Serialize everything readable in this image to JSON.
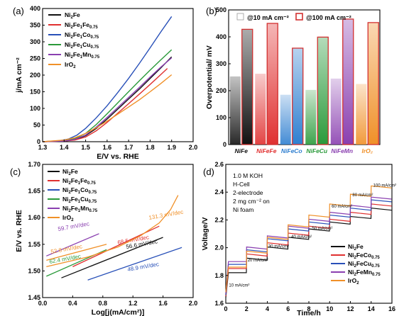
{
  "chart_data": [
    {
      "panel": "(a)",
      "type": "line",
      "xlabel": "E/V vs. RHE",
      "ylabel": "j/mA cm⁻²",
      "xlim": [
        1.3,
        2.0
      ],
      "ylim": [
        0,
        400
      ],
      "xticks": [
        "1.3",
        "1.4",
        "1.5",
        "1.6",
        "1.7",
        "1.8",
        "1.9",
        "2.0"
      ],
      "yticks": [
        "0",
        "50",
        "100",
        "150",
        "200",
        "250",
        "300",
        "350",
        "400"
      ],
      "legend_position": "top-left",
      "series": [
        {
          "name": "Ni₂Fe",
          "color": "#111111",
          "x": [
            1.3,
            1.4,
            1.45,
            1.5,
            1.55,
            1.6,
            1.65,
            1.7,
            1.75,
            1.8,
            1.85,
            1.9
          ],
          "y": [
            0,
            2,
            6,
            18,
            40,
            68,
            98,
            128,
            158,
            190,
            222,
            255
          ]
        },
        {
          "name": "Ni₂Fe₁Fe₀.₇₅",
          "color": "#e03030",
          "x": [
            1.3,
            1.4,
            1.45,
            1.5,
            1.55,
            1.6,
            1.65,
            1.7,
            1.75,
            1.8,
            1.85,
            1.88
          ],
          "y": [
            0,
            2,
            5,
            14,
            33,
            58,
            86,
            114,
            143,
            172,
            202,
            220
          ]
        },
        {
          "name": "Ni₂Fe₁Co₀.₇₅",
          "color": "#2850b8",
          "x": [
            1.3,
            1.38,
            1.42,
            1.46,
            1.5,
            1.55,
            1.6,
            1.65,
            1.7,
            1.75,
            1.8,
            1.85,
            1.9
          ],
          "y": [
            0,
            3,
            8,
            20,
            40,
            72,
            108,
            148,
            190,
            235,
            282,
            330,
            376
          ]
        },
        {
          "name": "Ni₂Fe₁Cu₀.₇₅",
          "color": "#2a9a3a",
          "x": [
            1.3,
            1.4,
            1.45,
            1.5,
            1.55,
            1.6,
            1.65,
            1.7,
            1.75,
            1.8,
            1.85,
            1.9
          ],
          "y": [
            0,
            3,
            9,
            25,
            52,
            84,
            117,
            150,
            183,
            215,
            246,
            276
          ]
        },
        {
          "name": "Ni₂Fe₁Mn₀.₇₅",
          "color": "#8a3fb0",
          "x": [
            1.3,
            1.4,
            1.45,
            1.5,
            1.55,
            1.6,
            1.65,
            1.7,
            1.75,
            1.8,
            1.85,
            1.9
          ],
          "y": [
            0,
            2,
            7,
            20,
            44,
            73,
            103,
            133,
            163,
            194,
            224,
            252
          ]
        },
        {
          "name": "IrO₂",
          "color": "#f09028",
          "x": [
            1.3,
            1.4,
            1.45,
            1.5,
            1.55,
            1.6,
            1.65,
            1.7,
            1.75,
            1.8,
            1.85,
            1.9
          ],
          "y": [
            0,
            5,
            12,
            25,
            42,
            62,
            83,
            104,
            126,
            150,
            175,
            201
          ]
        }
      ]
    },
    {
      "panel": "(b)",
      "type": "bar",
      "ylabel": "Overpotential/ mV",
      "ylim": [
        0,
        500
      ],
      "yticks": [
        "0",
        "100",
        "200",
        "300",
        "400",
        "500"
      ],
      "legend_position": "top",
      "categories": [
        "NiFe",
        "NiFeFe",
        "NiFeCo",
        "NiFeCu",
        "NiFeMn",
        "IrO₂"
      ],
      "category_colors": [
        "#111111",
        "#e03030",
        "#2f7fd0",
        "#2a9a3a",
        "#8a3fb0",
        "#f09028"
      ],
      "series": [
        {
          "name": "@10 mA cm⁻²",
          "values": [
            253,
            263,
            185,
            203,
            245,
            225
          ]
        },
        {
          "name": "@100 mA cm⁻²",
          "values": [
            428,
            450,
            358,
            399,
            466,
            453
          ]
        }
      ]
    },
    {
      "panel": "(c)",
      "type": "line",
      "xlabel": "Log[j(mA/cm²)]",
      "ylabel": "E/V vs. RHE",
      "xlim": [
        0.0,
        2.0
      ],
      "ylim": [
        1.45,
        1.7
      ],
      "xticks": [
        "0.0",
        "0.4",
        "0.8",
        "1.2",
        "1.6",
        "2.0"
      ],
      "yticks": [
        "1.45",
        "1.50",
        "1.55",
        "1.60",
        "1.65",
        "1.70"
      ],
      "legend_position": "top-left",
      "series": [
        {
          "name": "Ni₂Fe",
          "color": "#111111",
          "x": [
            0.25,
            1.6
          ],
          "y": [
            1.487,
            1.563
          ],
          "annotation": "56.6 mV/dec"
        },
        {
          "name": "Ni₂Fe₁Fe₀.₇₅",
          "color": "#e03030",
          "x": [
            0.4,
            1.55
          ],
          "y": [
            1.508,
            1.584
          ],
          "annotation": "68.5 mV/dec"
        },
        {
          "name": "Ni₂Fe₁Co₀.₇₅",
          "color": "#2850b8",
          "x": [
            0.6,
            1.85
          ],
          "y": [
            1.483,
            1.544
          ],
          "annotation": "48.9 mV/dec"
        },
        {
          "name": "Ni₂Fe₁Cu₀.₇₅",
          "color": "#2a9a3a",
          "x": [
            0.05,
            0.85
          ],
          "y": [
            1.49,
            1.54
          ],
          "annotation": "62.4 mV/dec"
        },
        {
          "name": "Ni₂Fe₁Mn₀.₇₅",
          "color": "#8a3fb0",
          "x": [
            0.05,
            0.75
          ],
          "y": [
            1.528,
            1.57
          ],
          "annotation": "59.7 mV/dec"
        },
        {
          "name": "IrO₂",
          "color": "#f09028",
          "x": [
            0.05,
            0.6,
            1.0,
            1.3,
            1.55,
            1.7,
            1.8
          ],
          "y": [
            1.508,
            1.526,
            1.545,
            1.566,
            1.59,
            1.615,
            1.642
          ],
          "annotation": "131.3 mV/dec"
        },
        {
          "name": "",
          "color": "#f09028",
          "x": [
            0.05,
            0.85
          ],
          "y": [
            1.52,
            1.55
          ],
          "annotation": "52.8 mV/dec"
        }
      ]
    },
    {
      "panel": "(d)",
      "type": "line",
      "xlabel": "Time/h",
      "ylabel": "Voltage/V",
      "xlim": [
        0,
        16
      ],
      "ylim": [
        1.6,
        2.6
      ],
      "xticks": [
        "0",
        "2",
        "4",
        "6",
        "8",
        "10",
        "12",
        "14",
        "16"
      ],
      "yticks": [
        "1.6",
        "1.8",
        "2.0",
        "2.2",
        "2.4",
        "2.6"
      ],
      "legend_position": "bottom-right",
      "conditions": [
        "1.0 M KOH",
        "H-Cell",
        "2-electrode",
        "2 mg cm⁻² on",
        "Ni foam"
      ],
      "step_labels": [
        {
          "text": "10 mA/cm²",
          "x": 0.3,
          "y": 1.72
        },
        {
          "text": "20 mA/cm²",
          "x": 2.1,
          "y": 1.9
        },
        {
          "text": "30 mA/cm²",
          "x": 4.1,
          "y": 2.0
        },
        {
          "text": "40 mA/cm²",
          "x": 6.3,
          "y": 2.07
        },
        {
          "text": "50 mA/cm²",
          "x": 8.3,
          "y": 2.13
        },
        {
          "text": "60 mA/cm²",
          "x": 10.2,
          "y": 2.29
        },
        {
          "text": "80 mA/cm²",
          "x": 12.2,
          "y": 2.37
        },
        {
          "text": "100 mA/cm²",
          "x": 14.2,
          "y": 2.44
        }
      ],
      "series": [
        {
          "name": "Ni₂Fe",
          "color": "#111111",
          "levels": [
            1.82,
            1.91,
            1.99,
            2.06,
            2.12,
            2.17,
            2.21,
            2.27
          ]
        },
        {
          "name": "Ni₂FeCo₀.₇₅",
          "color": "#e03030",
          "levels": [
            1.85,
            1.94,
            2.02,
            2.09,
            2.14,
            2.19,
            2.24,
            2.3
          ]
        },
        {
          "name": "Ni₂FeCu₀.₇₅",
          "color": "#2850b8",
          "levels": [
            1.88,
            1.97,
            2.05,
            2.12,
            2.17,
            2.22,
            2.27,
            2.33
          ]
        },
        {
          "name": "Ni₂FeMn₀.₇₅",
          "color": "#8a3fb0",
          "levels": [
            1.9,
            1.99,
            2.07,
            2.14,
            2.19,
            2.24,
            2.29,
            2.35
          ]
        },
        {
          "name": "IrO₂",
          "color": "#f09028",
          "levels": [
            1.86,
            1.96,
            2.06,
            2.15,
            2.22,
            2.3,
            2.37,
            2.43
          ]
        }
      ]
    }
  ]
}
